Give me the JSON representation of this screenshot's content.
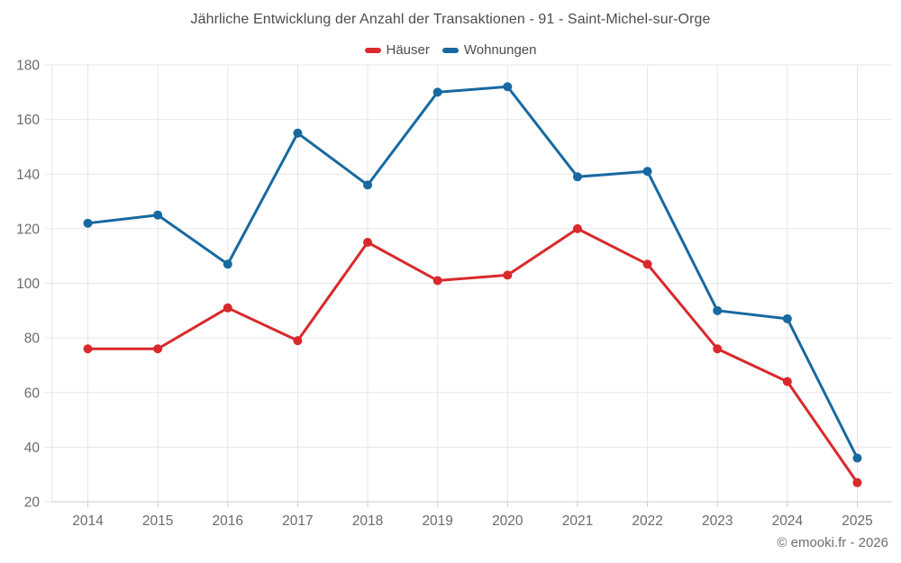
{
  "chart": {
    "title": "Jährliche Entwicklung der Anzahl der Transaktionen - 91 - Saint-Michel-sur-Orge"
  },
  "chart_data": {
    "type": "line",
    "categories": [
      "2014",
      "2015",
      "2016",
      "2017",
      "2018",
      "2019",
      "2020",
      "2021",
      "2022",
      "2023",
      "2024",
      "2025"
    ],
    "series": [
      {
        "name": "Häuser",
        "color": "#d9292c",
        "values": [
          76,
          76,
          91,
          79,
          115,
          101,
          103,
          120,
          107,
          76,
          64,
          27
        ]
      },
      {
        "name": "Wohnungen",
        "color": "#1769a0",
        "values": [
          122,
          125,
          107,
          155,
          136,
          170,
          172,
          139,
          141,
          90,
          87,
          36
        ]
      }
    ],
    "title": "Jährliche Entwicklung der Anzahl der Transaktionen - 91 - Saint-Michel-sur-Orge",
    "xlabel": "",
    "ylabel": "",
    "ylim": [
      20,
      180
    ],
    "y_ticks": [
      20,
      40,
      60,
      80,
      100,
      120,
      140,
      160,
      180
    ],
    "grid": true,
    "legend_position": "top",
    "grid_color": "#e6e6e6",
    "axis_line_color": "#cccccc",
    "tick_label_color": "#6b6b6b"
  },
  "footer": {
    "copyright": "© emooki.fr - 2026"
  }
}
